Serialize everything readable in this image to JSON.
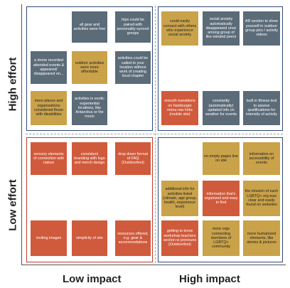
{
  "axes": {
    "y_top": "High effort",
    "y_bottom": "Low effort",
    "x_left": "Low impact",
    "x_right": "High impact"
  },
  "colors": {
    "gray": "#5b6b78",
    "gold": "#c9a24a",
    "red": "#d05a3c",
    "border_blue": "#2e4a7a",
    "border_red": "#c0392b"
  },
  "quadrants": {
    "top_left": [
      "all gear and activities were free",
      "trips could be paired with personality-synced groups",
      "a drone recorded attended events & appeared/ disappeared on...",
      "outdoor activities were more affordable",
      "activities could be called to your location without work of creating local chapter",
      "more places and organizations considered those with disabilities",
      "activities in exotic experiential locations, like Antarctica or the moon"
    ],
    "top_right": [
      "could easily connect with others who experience social anxiety",
      "social anxiety automatically disappeared once among group of like-minded peers",
      "AR section to show yourself in outdoor group pics / activity videos",
      "smooth transitions on hamburger menu nav links (mobile site)",
      "constantly (automatically) updated info on weather for events",
      "built in fitness test to assess qualifications for intensity of activity"
    ],
    "bottom_left": [
      "sensory elements of connection with nature",
      "consistent branding with logo and merch design",
      "drop down format of FAQ (Outdoorfest)",
      "inviting images",
      "simplicity of site",
      "resources offered, e.g. gear & accommodations"
    ],
    "bottom_right": [
      "no empty pages live on site",
      "information on accessibility of events",
      "additional info for activities listed (climate, age group, health, experience level)",
      "information that's organized and easy to find",
      "the mission of each LGBTQ+ org was clear and easily found on websites",
      "getting to know workshop teachers section w pronouns (Outdoorfest)",
      "more orgs connecting members of LGBTQ+ community",
      "more humanized elements, like stories & pictures"
    ]
  }
}
